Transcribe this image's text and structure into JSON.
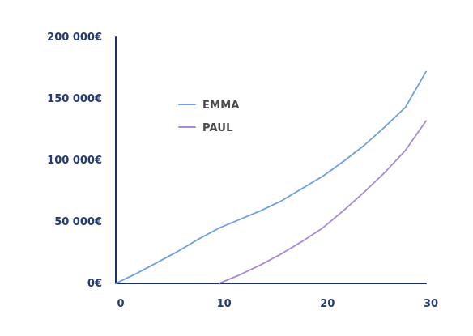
{
  "chart_data": {
    "type": "line",
    "x": [
      0,
      2,
      4,
      6,
      8,
      10,
      12,
      14,
      16,
      18,
      20,
      22,
      24,
      26,
      28,
      30
    ],
    "xticks": [
      "0",
      "10",
      "20",
      "30"
    ],
    "yticks": [
      "0€",
      "50 000€",
      "100 000€",
      "150 000€",
      "200 000€"
    ],
    "xlim": [
      0,
      30
    ],
    "ylim": [
      0,
      200000
    ],
    "grid": false,
    "legend_position": "upper-left",
    "series": [
      {
        "name": "EMMA",
        "color": "#6f9fe0",
        "values": [
          0,
          8000,
          17000,
          26000,
          36000,
          45000,
          52000,
          59000,
          67000,
          77000,
          87000,
          99000,
          112000,
          127000,
          143000,
          172000
        ]
      },
      {
        "name": "PAUL",
        "color": "#a98ad6",
        "values": [
          null,
          null,
          null,
          null,
          null,
          0,
          7000,
          15000,
          24000,
          34000,
          45000,
          59000,
          74000,
          90000,
          108000,
          132000
        ]
      }
    ]
  }
}
